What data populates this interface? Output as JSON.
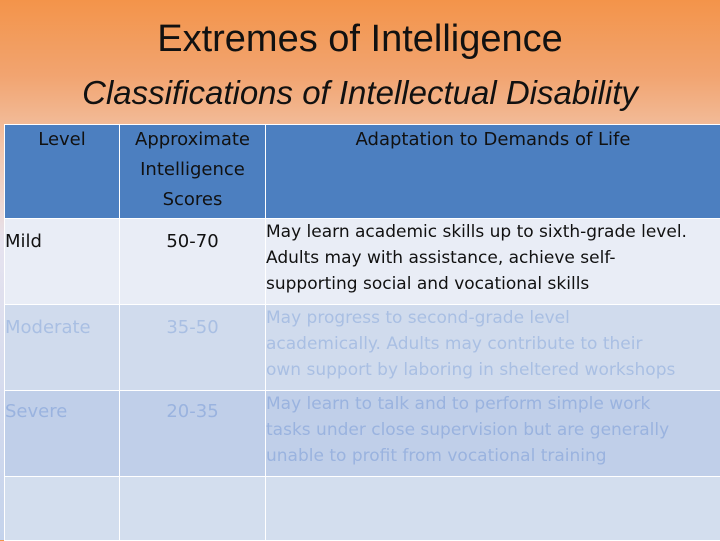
{
  "title": "Extremes of Intelligence",
  "subtitle": "Classifications of Intellectual Disability",
  "table": {
    "headers": {
      "level": "Level",
      "scores_line1": "Approximate",
      "scores_line2": "Intelligence",
      "scores_line3": "Scores",
      "adaptation": "Adaptation to Demands of Life"
    },
    "rows": [
      {
        "level": "Mild",
        "scores": "50-70",
        "adaptation_line1": "May learn academic skills up to sixth-grade level.",
        "adaptation_line2": "Adults may with assistance, achieve self-",
        "adaptation_line3": "supporting social and vocational skills"
      },
      {
        "level": "Moderate",
        "scores": "35-50",
        "adaptation_line1": "May progress to second-grade level",
        "adaptation_line2": "academically.  Adults may contribute to their",
        "adaptation_line3": "own support by laboring in sheltered workshops"
      },
      {
        "level": "Severe",
        "scores": "20-35",
        "adaptation_line1": "May learn to talk and to perform simple work",
        "adaptation_line2": "tasks under close supervision but are generally",
        "adaptation_line3": "unable to profit from vocational training"
      }
    ]
  },
  "colors": {
    "header_fill": "#4c7fc0",
    "title_gradient_top": "#f3944a",
    "faded_text": "#a9bfe3"
  }
}
